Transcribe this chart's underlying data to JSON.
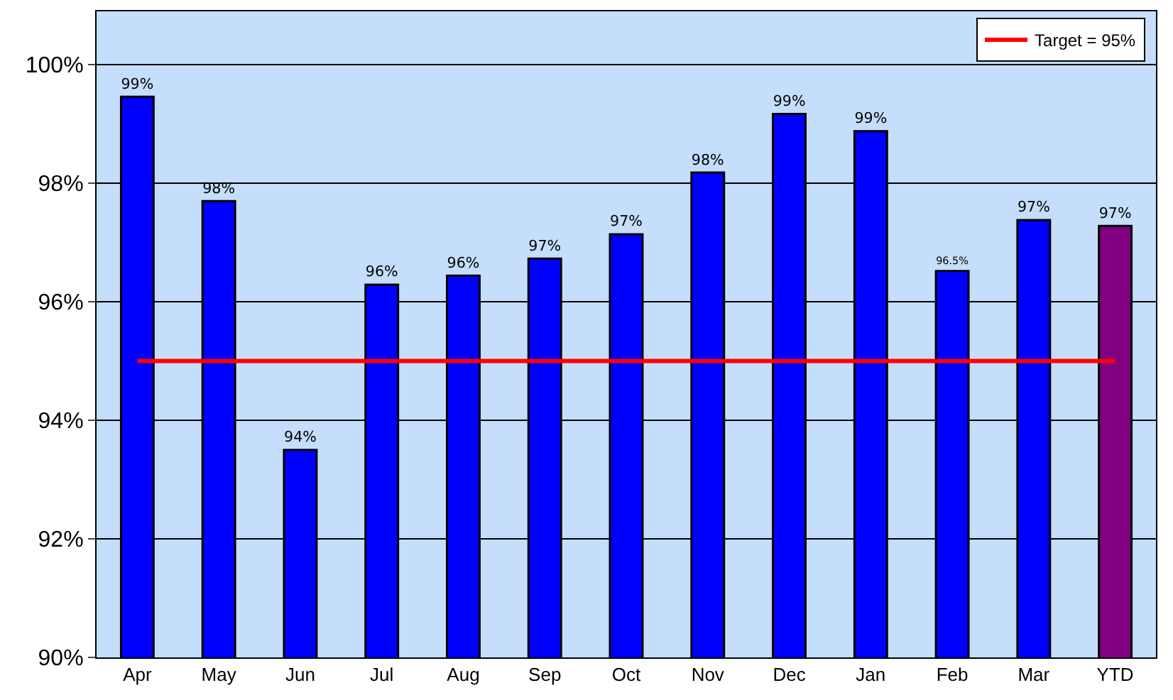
{
  "chart_data": {
    "type": "bar",
    "categories": [
      "Apr",
      "May",
      "Jun",
      "Jul",
      "Aug",
      "Sep",
      "Oct",
      "Nov",
      "Dec",
      "Jan",
      "Feb",
      "Mar",
      "YTD"
    ],
    "series": [
      {
        "colors": [
          "#0000ff",
          "#0000ff",
          "#0000ff",
          "#0000ff",
          "#0000ff",
          "#0000ff",
          "#0000ff",
          "#0000ff",
          "#0000ff",
          "#0000ff",
          "#0000ff",
          "#0000ff",
          "#800080"
        ],
        "values": [
          99.46,
          97.7,
          93.5,
          96.29,
          96.44,
          96.73,
          97.14,
          98.18,
          99.17,
          98.88,
          96.52,
          97.38,
          97.28
        ],
        "value_labels": [
          "99%",
          "98%",
          "94%",
          "96%",
          "96%",
          "97%",
          "97%",
          "98%",
          "99%",
          "99%",
          "96.5%",
          "97%",
          "97%"
        ]
      },
      {
        "type": "line",
        "name": "Target = 95%",
        "color": "#ff0000",
        "marker": "none",
        "line_style": "solid",
        "values": [
          95,
          95,
          95,
          95,
          95,
          95,
          95,
          95,
          95,
          95,
          95,
          95,
          95
        ]
      }
    ],
    "ylim": [
      90,
      100.9
    ],
    "yticks": [
      {
        "value": 90,
        "label": "90%"
      },
      {
        "value": 92,
        "label": "92%"
      },
      {
        "value": 94,
        "label": "94%"
      },
      {
        "value": 96,
        "label": "96%"
      },
      {
        "value": 98,
        "label": "98%"
      },
      {
        "value": 100,
        "label": "100%"
      }
    ],
    "grid": "y",
    "legend": "top right"
  }
}
